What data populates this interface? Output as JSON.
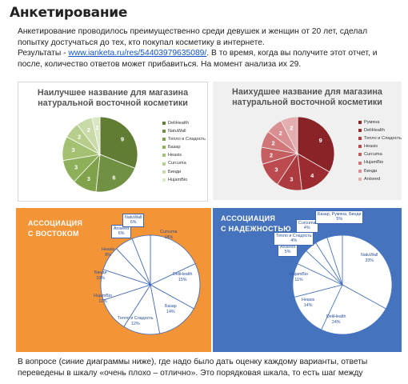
{
  "heading": "Анкетирование",
  "intro": {
    "p1": "Анкетирование проводилось преимущественно среди девушек и женщин от 20 лет, сделал попытку достучаться до тех, кто покупал косметику в интернете.",
    "results_prefix": "Результаты - ",
    "results_link": "www.ianketa.ru/res/54403979635089/",
    "results_suffix": ". В то время, когда вы получите этот отчет, и после, количество ответов может прибавиться. На момент анализа их 29."
  },
  "best_chart": {
    "title": "Наилучшее название для магазина натуральной восточной косметики",
    "legend": [
      "DeliHealth",
      "NatuWall",
      "Тепло и Сладость",
      "Базар",
      "Heasis",
      "Curcuma",
      "Бинди",
      "HujamBio"
    ],
    "colors": [
      "#617d34",
      "#709043",
      "#7fa24b",
      "#8fb05a",
      "#a3c170",
      "#b6cd8c",
      "#c7daa8",
      "#d8e6c3"
    ]
  },
  "worst_chart": {
    "title": "Наихудшее название для магазина натуральной восточной косметики",
    "legend": [
      "Румяна",
      "DeliHealth",
      "Тепло и Сладость",
      "Heasis",
      "Curcuma",
      "HujamBio",
      "Бинди",
      "Aniseed"
    ],
    "colors": [
      "#8a2328",
      "#9c2b30",
      "#ac3a3e",
      "#bb4b4f",
      "#c55e61",
      "#d07679",
      "#da8f92",
      "#e4adb0"
    ]
  },
  "chart_data": [
    {
      "type": "pie",
      "title": "Наилучшее название для магазина натуральной восточной косметики",
      "categories": [
        "DeliHealth",
        "NatuWall",
        "Тепло и Сладость",
        "Базар",
        "Heasis",
        "Curcuma",
        "Бинди",
        "HujamBio"
      ],
      "values": [
        9,
        6,
        3,
        3,
        3,
        2,
        2,
        1
      ],
      "legend_position": "right"
    },
    {
      "type": "pie",
      "title": "Наихудшее название для магазина натуральной восточной косметики",
      "categories": [
        "Румяна",
        "DeliHealth",
        "Тепло и Сладость",
        "Heasis",
        "Curcuma",
        "HujamBio",
        "Бинди",
        "Aniseed"
      ],
      "values": [
        9,
        4,
        3,
        3,
        2,
        2,
        2,
        2
      ],
      "legend_position": "right"
    },
    {
      "type": "pie",
      "title": "АССОЦИАЦИЯ С ВОСТОКОМ",
      "categories": [
        "Curcuma",
        "DeliHealth",
        "Базар",
        "Тепло и Сладость",
        "HujamBio",
        "Бинди",
        "Heasis",
        "Aniseed",
        "NatuWall"
      ],
      "values": [
        18,
        15,
        14,
        12,
        11,
        10,
        8,
        6,
        6
      ],
      "unit": "%"
    },
    {
      "type": "pie",
      "title": "АССОЦИАЦИЯ С НАДЕЖНОСТЬЮ",
      "categories": [
        "NatuWall",
        "DeliHealth",
        "Heasis",
        "HujamBio",
        "Aniseed",
        "Тепло и Сладость",
        "Curcuma",
        "Базар, Румяна, Бинди"
      ],
      "values": [
        33,
        24,
        14,
        11,
        5,
        4,
        4,
        5
      ],
      "unit": "%"
    }
  ],
  "assoc_east": {
    "title_l1": "АССОЦИАЦИЯ",
    "title_l2": "С ВОСТОКОМ",
    "labels": [
      {
        "name": "Curcuma",
        "pct": "18%"
      },
      {
        "name": "DeliHealth",
        "pct": "15%"
      },
      {
        "name": "Базар",
        "pct": "14%"
      },
      {
        "name": "Тепло и Сладость",
        "pct": "12%"
      },
      {
        "name": "HujamBio",
        "pct": "11%"
      },
      {
        "name": "Бинди",
        "pct": "10%"
      },
      {
        "name": "Heasis",
        "pct": "8%"
      },
      {
        "name": "Aniseed",
        "pct": "6%"
      },
      {
        "name": "NatuWall",
        "pct": "6%"
      }
    ]
  },
  "assoc_rel": {
    "title_l1": "АССОЦИАЦИЯ",
    "title_l2": "С НАДЕЖНОСТЬЮ",
    "labels": [
      {
        "name": "NatuWall",
        "pct": "33%"
      },
      {
        "name": "DeliHealth",
        "pct": "24%"
      },
      {
        "name": "Heasis",
        "pct": "14%"
      },
      {
        "name": "HujamBio",
        "pct": "11%"
      },
      {
        "name": "Aniseed",
        "pct": "5%"
      },
      {
        "name": "Тепло и Сладость",
        "pct": "4%"
      },
      {
        "name": "Curcuma",
        "pct": "4%"
      },
      {
        "name": "Базар, Румяна, Бинди",
        "pct": "5%"
      }
    ]
  },
  "footer": "В вопросе (синие диаграммы ниже), где надо было дать оценку каждому варианты, ответы переведены в шкалу «очень плохо – отлично». Это порядковая шкала, то есть шаг между"
}
